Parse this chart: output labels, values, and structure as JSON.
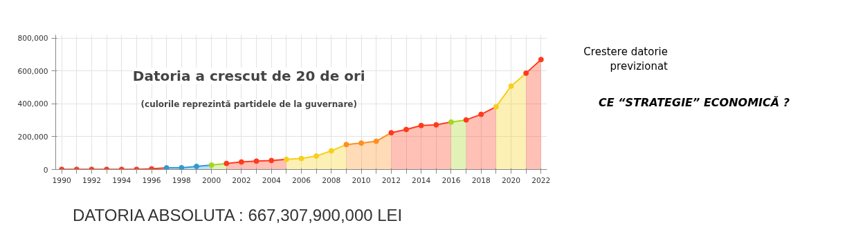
{
  "chart_data": {
    "type": "area",
    "title": "Datoria a crescut de 20 de ori",
    "subtitle": "(culorile reprezintă partidele de la guvernare)",
    "series": [
      {
        "color": "#ff3a1c",
        "x": [
          1990,
          1991,
          1992,
          1993,
          1994,
          1995,
          1996,
          1997
        ],
        "values": [
          1000,
          1000,
          1000,
          1000,
          1000,
          1000,
          4000,
          10000
        ]
      },
      {
        "color": "#2f9ad6",
        "x": [
          1997,
          1998,
          1999,
          2000
        ],
        "values": [
          10000,
          11000,
          19000,
          27000
        ]
      },
      {
        "color": "#a6d61e",
        "x": [
          2000,
          2001
        ],
        "values": [
          27000,
          37000
        ]
      },
      {
        "color": "#ff3a1c",
        "x": [
          2001,
          2002,
          2003,
          2004,
          2005
        ],
        "values": [
          37000,
          46000,
          51000,
          55000,
          62000
        ]
      },
      {
        "color": "#f7cf1a",
        "x": [
          2005,
          2006,
          2007,
          2008,
          2009
        ],
        "values": [
          62000,
          67000,
          82000,
          114000,
          152000
        ]
      },
      {
        "color": "#ff8f1f",
        "x": [
          2009,
          2010,
          2011,
          2012
        ],
        "values": [
          152000,
          161000,
          172000,
          224000
        ]
      },
      {
        "color": "#ff3a1c",
        "x": [
          2012,
          2013,
          2014,
          2015,
          2016
        ],
        "values": [
          224000,
          244000,
          268000,
          272000,
          289000
        ]
      },
      {
        "color": "#a6d61e",
        "x": [
          2016,
          2017
        ],
        "values": [
          289000,
          302000
        ]
      },
      {
        "color": "#ff3a1c",
        "x": [
          2017,
          2018,
          2019
        ],
        "values": [
          302000,
          336000,
          382000
        ]
      },
      {
        "color": "#f7cf1a",
        "x": [
          2019,
          2020,
          2021
        ],
        "values": [
          382000,
          508000,
          587000
        ]
      },
      {
        "color": "#ff3a1c",
        "x": [
          2021,
          2022
        ],
        "values": [
          587000,
          670000
        ]
      }
    ],
    "xlim": [
      1989.6,
      2022.4
    ],
    "ylim": [
      0,
      820000
    ],
    "xticks": [
      1990,
      {
        "value": 1991,
        "label": null
      },
      1992,
      {
        "value": 1993,
        "label": null
      },
      1994,
      {
        "value": 1995,
        "label": null
      },
      1996,
      {
        "value": 1997,
        "label": null
      },
      1998,
      {
        "value": 1999,
        "label": null
      },
      2000,
      {
        "value": 2001,
        "label": null
      },
      2002,
      {
        "value": 2003,
        "label": null
      },
      2004,
      {
        "value": 2005,
        "label": null
      },
      2006,
      {
        "value": 2007,
        "label": null
      },
      2008,
      {
        "value": 2009,
        "label": null
      },
      2010,
      {
        "value": 2011,
        "label": null
      },
      2012,
      {
        "value": 2013,
        "label": null
      },
      2014,
      {
        "value": 2015,
        "label": null
      },
      2016,
      {
        "value": 2017,
        "label": null
      },
      2018,
      {
        "value": 2019,
        "label": null
      },
      2020,
      {
        "value": 2021,
        "label": null
      },
      2022
    ],
    "yticks": [
      0,
      {
        "value": 200000,
        "label": "200,000"
      },
      {
        "value": 400000,
        "label": "400,000"
      },
      {
        "value": 600000,
        "label": "600,000"
      },
      {
        "value": 800000,
        "label": "800,000"
      }
    ],
    "grid": true,
    "marker": "circle",
    "annotations": [
      "Crestere datorie previzionat",
      "CE “STRATEGIE” ECONOMICĂ ?",
      "DATORIA ABSOLUTA : 667,307,900,000 LEI"
    ]
  }
}
